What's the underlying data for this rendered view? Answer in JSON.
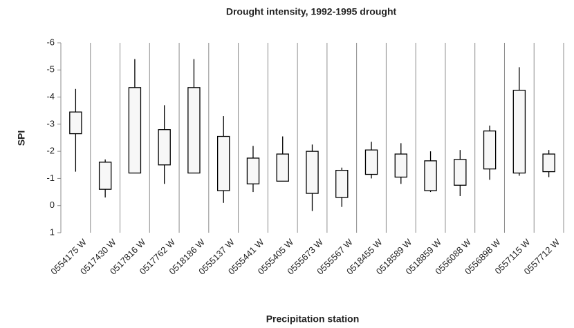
{
  "chart_data": {
    "type": "box",
    "title": "Drought intensity, 1992-1995 drought",
    "x_label": "Precipitation station",
    "y_label": "SPI",
    "categories": [
      "0554175 W",
      "0517430 W",
      "0517816 W",
      "0517762 W",
      "0518186 W",
      "0555137 W",
      "0555441 W",
      "0555405 W",
      "0555673 W",
      "0555567 W",
      "0518455 W",
      "0518589 W",
      "0518859 W",
      "0556088 W",
      "0556898 W",
      "0557115 W",
      "0557712 W"
    ],
    "min": [
      -4.3,
      -1.7,
      -5.4,
      -3.7,
      -5.4,
      -3.3,
      -2.2,
      -2.55,
      -2.25,
      -1.4,
      -2.35,
      -2.3,
      -2.0,
      -2.05,
      -2.95,
      -5.1,
      -2.05
    ],
    "box_min": [
      -3.45,
      -1.6,
      -4.35,
      -2.8,
      -4.35,
      -2.55,
      -1.75,
      -1.9,
      -2.0,
      -1.3,
      -2.05,
      -1.9,
      -1.65,
      -1.7,
      -2.75,
      -4.25,
      -1.9
    ],
    "box_max": [
      -2.65,
      -0.6,
      -1.2,
      -1.5,
      -1.2,
      -0.55,
      -0.8,
      -0.9,
      -0.45,
      -0.3,
      -1.15,
      -1.05,
      -0.55,
      -0.75,
      -1.35,
      -1.2,
      -1.25
    ],
    "max": [
      -1.25,
      -0.3,
      -1.2,
      -0.8,
      -1.2,
      -0.1,
      -0.5,
      -0.9,
      0.2,
      0.05,
      -1.0,
      -0.8,
      -0.5,
      -0.35,
      -0.95,
      -1.1,
      -1.05
    ],
    "box_color": "#f7f7f7",
    "line_color": "#000000",
    "ylim": [
      -6,
      1
    ],
    "y_inverted": true,
    "yticks": [
      -6,
      -5,
      -4,
      -3,
      -2,
      -1,
      0,
      1
    ],
    "vertical_grid": true
  }
}
